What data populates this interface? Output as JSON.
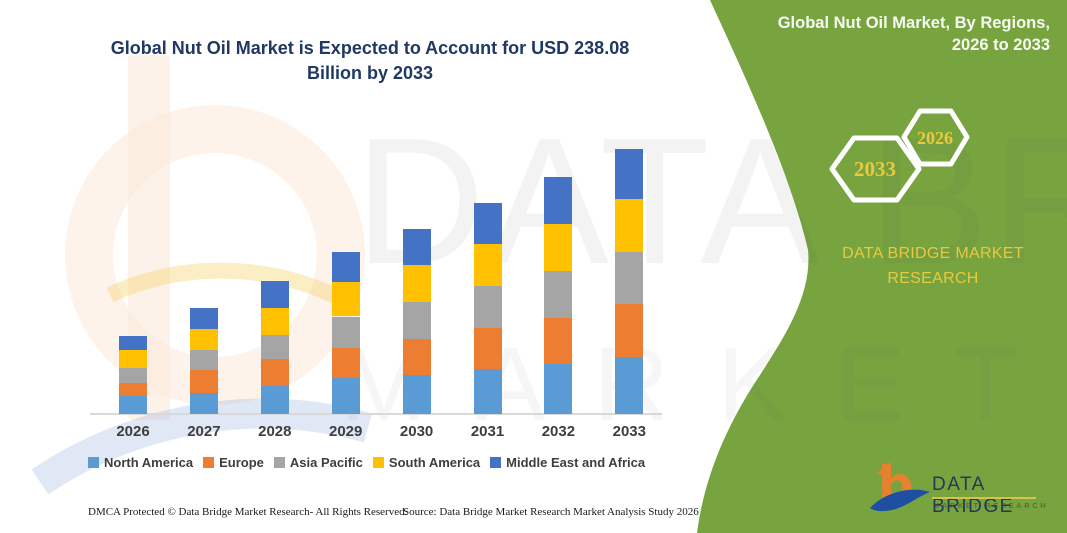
{
  "chart_panel": {
    "title": "Global Nut Oil Market is Expected to Account for USD 238.08 Billion by 2033",
    "title_lines": [
      "Global Nut Oil Market is Expected to Account for USD 238.08",
      "Billion by 2033"
    ],
    "title_color": "#1F3864",
    "footer_left": "DMCA Protected © Data Bridge Market Research-  All Rights Reserved.",
    "footer_right": "Source: Data Bridge Market Research  Market Analysis Study 2026"
  },
  "chart_data": {
    "type": "bar",
    "stacked": true,
    "unit": "USD Billion (values estimated from bar heights; 2033 total labeled 238.08)",
    "categories": [
      "2026",
      "2027",
      "2028",
      "2029",
      "2030",
      "2031",
      "2032",
      "2033"
    ],
    "series": [
      {
        "name": "North America",
        "color": "#5B9BD5",
        "values": [
          16.2,
          19.0,
          25.2,
          32.5,
          35.0,
          40.0,
          44.5,
          51.4
        ]
      },
      {
        "name": "Europe",
        "color": "#ED7D31",
        "values": [
          11.7,
          20.7,
          24.3,
          27.1,
          32.5,
          37.5,
          41.8,
          47.8
        ]
      },
      {
        "name": "Asia Pacific",
        "color": "#A5A5A5",
        "values": [
          13.5,
          18.0,
          21.6,
          28.0,
          33.5,
          37.2,
          42.5,
          46.0
        ]
      },
      {
        "name": "South America",
        "color": "#FFC000",
        "values": [
          16.2,
          18.9,
          24.3,
          30.7,
          32.5,
          38.3,
          41.8,
          47.8
        ]
      },
      {
        "name": "Middle East and Africa",
        "color": "#4472C4",
        "values": [
          12.6,
          18.9,
          24.3,
          27.1,
          32.5,
          37.0,
          42.4,
          45.1
        ]
      }
    ],
    "totals": [
      70.2,
      95.5,
      119.7,
      145.4,
      166.0,
      190.0,
      213.0,
      238.1
    ],
    "legend_position": "bottom",
    "grid": false,
    "y_axis_labels": false,
    "axis_line_color": "#D9D9D9"
  },
  "side_panel": {
    "heading": "Global Nut Oil Market, By Regions, 2026 to 2033",
    "heading_lines": [
      "Global Nut Oil Market, By Regions,",
      "2026 to 2033"
    ],
    "hexagons": [
      {
        "label": "2033"
      },
      {
        "label": "2026"
      }
    ],
    "brand_lines": [
      "DATA BRIDGE MARKET",
      "RESEARCH"
    ],
    "colors": {
      "background": "#78A440",
      "accent_yellow": "#E9C93D",
      "heading_text": "#F7FAF2"
    }
  },
  "logo": {
    "brand": "DATA BRIDGE",
    "sub": "MARKET RESEARCH"
  },
  "watermark": {
    "line1": "DATA BRIDGE",
    "line2": "MARKET RESEARCH"
  }
}
